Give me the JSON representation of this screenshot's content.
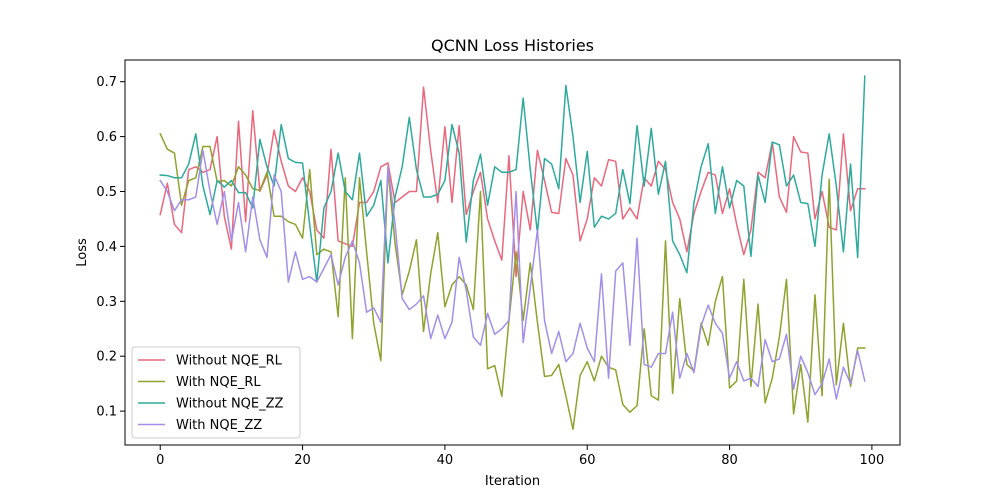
{
  "chart_data": {
    "type": "line",
    "title": "QCNN Loss Histories",
    "xlabel": "Iteration",
    "ylabel": "Loss",
    "xlim": [
      -4.95,
      103.95
    ],
    "ylim": [
      0.0383,
      0.7395
    ],
    "x_ticks": [
      0,
      20,
      40,
      60,
      80,
      100
    ],
    "y_ticks": [
      0.1,
      0.2,
      0.3,
      0.4,
      0.5,
      0.6,
      0.7
    ],
    "x_tick_labels": [
      "0",
      "20",
      "40",
      "60",
      "80",
      "100"
    ],
    "y_tick_labels": [
      "0.1",
      "0.2",
      "0.3",
      "0.4",
      "0.5",
      "0.6",
      "0.7"
    ],
    "grid": false,
    "legend_position": "lower-left",
    "series": [
      {
        "name": "Without NQE_RL",
        "color": "#e8687d",
        "values": [
          0.458,
          0.515,
          0.44,
          0.425,
          0.54,
          0.545,
          0.535,
          0.54,
          0.6,
          0.455,
          0.395,
          0.628,
          0.445,
          0.647,
          0.5,
          0.53,
          0.612,
          0.555,
          0.51,
          0.5,
          0.525,
          0.5,
          0.43,
          0.415,
          0.577,
          0.41,
          0.405,
          0.4,
          0.48,
          0.48,
          0.5,
          0.545,
          0.552,
          0.48,
          0.49,
          0.5,
          0.5,
          0.69,
          0.575,
          0.48,
          0.618,
          0.48,
          0.62,
          0.458,
          0.5,
          0.535,
          0.45,
          0.41,
          0.375,
          0.565,
          0.345,
          0.5,
          0.43,
          0.575,
          0.52,
          0.462,
          0.46,
          0.56,
          0.53,
          0.41,
          0.45,
          0.525,
          0.51,
          0.558,
          0.555,
          0.45,
          0.47,
          0.45,
          0.525,
          0.51,
          0.555,
          0.54,
          0.48,
          0.45,
          0.39,
          0.46,
          0.5,
          0.535,
          0.53,
          0.46,
          0.505,
          0.44,
          0.385,
          0.43,
          0.535,
          0.525,
          0.59,
          0.49,
          0.462,
          0.6,
          0.572,
          0.57,
          0.45,
          0.5,
          0.435,
          0.43,
          0.605,
          0.465,
          0.505,
          0.505
        ]
      },
      {
        "name": "With NQE_RL",
        "color": "#8ea32d",
        "values": [
          0.605,
          0.577,
          0.57,
          0.475,
          0.52,
          0.525,
          0.582,
          0.582,
          0.518,
          0.52,
          0.51,
          0.545,
          0.53,
          0.505,
          0.502,
          0.535,
          0.455,
          0.455,
          0.445,
          0.44,
          0.415,
          0.54,
          0.385,
          0.395,
          0.39,
          0.272,
          0.525,
          0.232,
          0.525,
          0.39,
          0.26,
          0.192,
          0.54,
          0.405,
          0.312,
          0.355,
          0.412,
          0.245,
          0.35,
          0.425,
          0.29,
          0.33,
          0.345,
          0.33,
          0.285,
          0.5,
          0.177,
          0.183,
          0.127,
          0.265,
          0.39,
          0.265,
          0.37,
          0.262,
          0.163,
          0.165,
          0.185,
          0.128,
          0.067,
          0.165,
          0.19,
          0.155,
          0.2,
          0.18,
          0.175,
          0.112,
          0.098,
          0.11,
          0.25,
          0.128,
          0.12,
          0.41,
          0.132,
          0.305,
          0.185,
          0.173,
          0.26,
          0.22,
          0.3,
          0.345,
          0.142,
          0.155,
          0.34,
          0.145,
          0.295,
          0.115,
          0.16,
          0.235,
          0.34,
          0.095,
          0.185,
          0.08,
          0.312,
          0.128,
          0.522,
          0.148,
          0.26,
          0.145,
          0.215,
          0.215
        ]
      },
      {
        "name": "Without NQE_ZZ",
        "color": "#2eaa9c",
        "values": [
          0.53,
          0.529,
          0.525,
          0.525,
          0.55,
          0.605,
          0.51,
          0.458,
          0.52,
          0.508,
          0.52,
          0.498,
          0.498,
          0.47,
          0.595,
          0.545,
          0.51,
          0.622,
          0.56,
          0.553,
          0.552,
          0.44,
          0.335,
          0.47,
          0.5,
          0.57,
          0.5,
          0.485,
          0.57,
          0.455,
          0.475,
          0.52,
          0.37,
          0.49,
          0.545,
          0.635,
          0.54,
          0.49,
          0.49,
          0.495,
          0.52,
          0.622,
          0.57,
          0.408,
          0.52,
          0.568,
          0.475,
          0.545,
          0.535,
          0.535,
          0.54,
          0.67,
          0.54,
          0.425,
          0.56,
          0.55,
          0.505,
          0.693,
          0.6,
          0.48,
          0.573,
          0.435,
          0.455,
          0.45,
          0.46,
          0.54,
          0.478,
          0.62,
          0.51,
          0.615,
          0.495,
          0.555,
          0.41,
          0.385,
          0.352,
          0.48,
          0.545,
          0.587,
          0.46,
          0.545,
          0.47,
          0.52,
          0.51,
          0.382,
          0.53,
          0.48,
          0.59,
          0.585,
          0.51,
          0.53,
          0.48,
          0.478,
          0.4,
          0.53,
          0.605,
          0.51,
          0.39,
          0.55,
          0.38,
          0.71
        ]
      },
      {
        "name": "With NQE_ZZ",
        "color": "#a58ee8",
        "values": [
          0.52,
          0.5,
          0.465,
          0.485,
          0.485,
          0.49,
          0.575,
          0.5,
          0.44,
          0.5,
          0.41,
          0.48,
          0.39,
          0.49,
          0.412,
          0.38,
          0.53,
          0.5,
          0.335,
          0.39,
          0.34,
          0.345,
          0.335,
          0.36,
          0.385,
          0.33,
          0.38,
          0.41,
          0.37,
          0.28,
          0.288,
          0.262,
          0.545,
          0.44,
          0.305,
          0.285,
          0.295,
          0.31,
          0.232,
          0.275,
          0.232,
          0.262,
          0.38,
          0.32,
          0.235,
          0.22,
          0.278,
          0.24,
          0.25,
          0.265,
          0.5,
          0.225,
          0.325,
          0.43,
          0.265,
          0.205,
          0.245,
          0.19,
          0.205,
          0.26,
          0.215,
          0.19,
          0.35,
          0.16,
          0.355,
          0.37,
          0.22,
          0.415,
          0.185,
          0.18,
          0.205,
          0.205,
          0.28,
          0.16,
          0.205,
          0.17,
          0.255,
          0.293,
          0.26,
          0.242,
          0.16,
          0.19,
          0.155,
          0.16,
          0.145,
          0.23,
          0.19,
          0.195,
          0.24,
          0.14,
          0.2,
          0.17,
          0.13,
          0.15,
          0.195,
          0.122,
          0.18,
          0.15,
          0.21,
          0.155
        ]
      }
    ]
  }
}
